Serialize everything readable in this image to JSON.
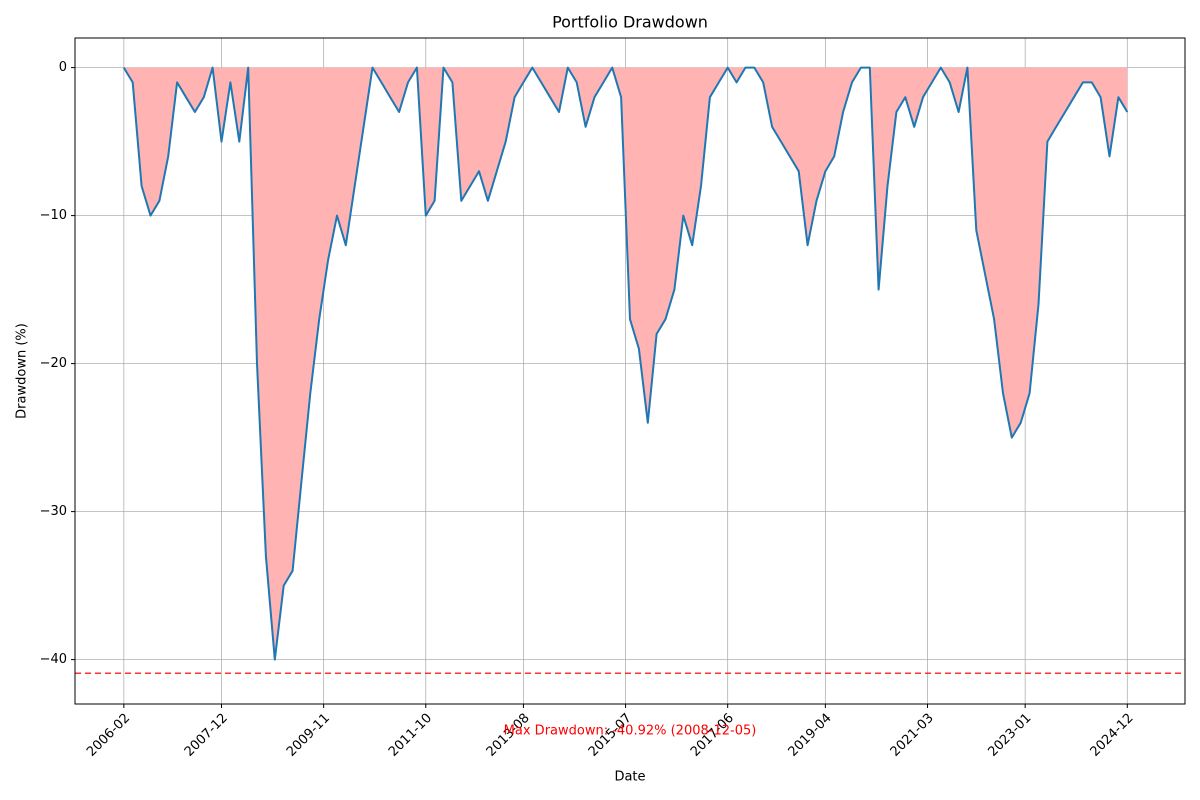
{
  "chart_data": {
    "type": "area-line",
    "title": "Portfolio Drawdown",
    "x_label": "Date",
    "y_label": "Drawdown (%)",
    "x": [
      "2006-02",
      "2006-04",
      "2006-06",
      "2006-08",
      "2006-10",
      "2006-12",
      "2007-02",
      "2007-04",
      "2007-06",
      "2007-08",
      "2007-10",
      "2007-12",
      "2008-02",
      "2008-04",
      "2008-06",
      "2008-08",
      "2008-10",
      "2008-12",
      "2009-02",
      "2009-04",
      "2009-06",
      "2009-08",
      "2009-10",
      "2009-12",
      "2010-02",
      "2010-04",
      "2010-06",
      "2010-08",
      "2010-10",
      "2010-12",
      "2011-02",
      "2011-04",
      "2011-06",
      "2011-08",
      "2011-10",
      "2011-12",
      "2012-02",
      "2012-04",
      "2012-06",
      "2012-08",
      "2012-10",
      "2012-12",
      "2013-02",
      "2013-04",
      "2013-06",
      "2013-08",
      "2013-10",
      "2013-12",
      "2014-02",
      "2014-04",
      "2014-06",
      "2014-08",
      "2014-10",
      "2014-12",
      "2015-02",
      "2015-04",
      "2015-06",
      "2015-08",
      "2015-10",
      "2015-12",
      "2016-02",
      "2016-04",
      "2016-06",
      "2016-08",
      "2016-10",
      "2016-12",
      "2017-02",
      "2017-04",
      "2017-06",
      "2017-08",
      "2017-10",
      "2017-12",
      "2018-02",
      "2018-04",
      "2018-06",
      "2018-08",
      "2018-10",
      "2018-12",
      "2019-02",
      "2019-04",
      "2019-06",
      "2019-08",
      "2019-10",
      "2019-12",
      "2020-02",
      "2020-04",
      "2020-06",
      "2020-08",
      "2020-10",
      "2020-12",
      "2021-02",
      "2021-04",
      "2021-06",
      "2021-08",
      "2021-10",
      "2021-12",
      "2022-02",
      "2022-04",
      "2022-06",
      "2022-08",
      "2022-10",
      "2022-12",
      "2023-02",
      "2023-04",
      "2023-06",
      "2023-08",
      "2023-10",
      "2023-12",
      "2024-02",
      "2024-04",
      "2024-06",
      "2024-08",
      "2024-10",
      "2024-12"
    ],
    "series": [
      {
        "name": "Drawdown",
        "color": "#1f77b4",
        "fill": "#ffb3b3",
        "values": [
          0,
          -1,
          -8,
          -10,
          -9,
          -6,
          -1,
          -2,
          -3,
          -2,
          0,
          -5,
          -1,
          -5,
          0,
          -20,
          -33,
          -40,
          -35,
          -34,
          -28,
          -22,
          -17,
          -13,
          -10,
          -12,
          -8,
          -4,
          0,
          -1,
          -2,
          -3,
          -1,
          0,
          -10,
          -9,
          0,
          -1,
          -9,
          -8,
          -7,
          -9,
          -7,
          -5,
          -2,
          -1,
          0,
          -1,
          -2,
          -3,
          0,
          -1,
          -4,
          -2,
          -1,
          0,
          -2,
          -17,
          -19,
          -24,
          -18,
          -17,
          -15,
          -10,
          -12,
          -8,
          -2,
          -1,
          0,
          -1,
          0,
          0,
          -1,
          -4,
          -5,
          -6,
          -7,
          -12,
          -9,
          -7,
          -6,
          -3,
          -1,
          0,
          0,
          -15,
          -8,
          -3,
          -2,
          -4,
          -2,
          -1,
          0,
          -1,
          -3,
          0,
          -11,
          -14,
          -17,
          -22,
          -25,
          -24,
          -22,
          -16,
          -5,
          -4,
          -3,
          -2,
          -1,
          -1,
          -2,
          -6,
          -2,
          -3
        ]
      }
    ],
    "hline": {
      "value": -40.92,
      "color": "#ff0000"
    },
    "annotation": "Max Drawdown: -40.92% (2008-12-05)",
    "xlim": [
      "2005-03",
      "2026-01"
    ],
    "xticks": [
      "2006-02",
      "2007-12",
      "2009-11",
      "2011-10",
      "2013-08",
      "2015-07",
      "2017-06",
      "2019-04",
      "2021-03",
      "2023-01",
      "2024-12"
    ],
    "ylim": [
      -43,
      2
    ],
    "yticks": [
      {
        "value": -40,
        "label": "−40"
      },
      {
        "value": -30,
        "label": "−30"
      },
      {
        "value": -20,
        "label": "−20"
      },
      {
        "value": -10,
        "label": "−10"
      },
      0
    ],
    "grid": true
  }
}
